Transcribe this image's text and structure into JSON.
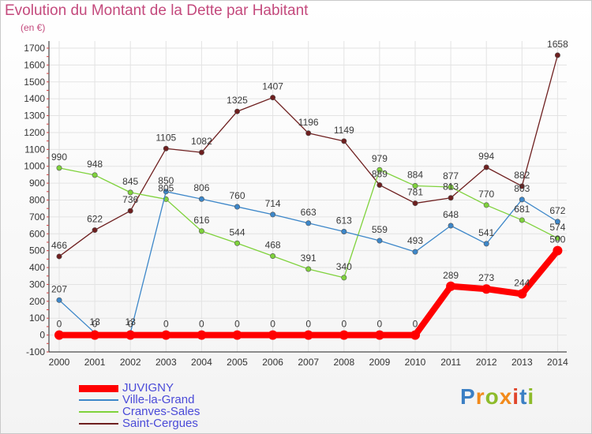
{
  "title": "Evolution du Montant de la Dette par Habitant",
  "unit": "(en €)",
  "logo": "Proxiti",
  "chart_data": {
    "type": "line",
    "x": [
      "2000",
      "2001",
      "2002",
      "2003",
      "2004",
      "2005",
      "2006",
      "2007",
      "2008",
      "2009",
      "2010",
      "2011",
      "2012",
      "2013",
      "2014"
    ],
    "ylim": [
      -100,
      1700
    ],
    "yticks": [
      -100,
      0,
      100,
      200,
      300,
      400,
      500,
      600,
      700,
      800,
      900,
      1000,
      1100,
      1200,
      1300,
      1400,
      1500,
      1600,
      1700
    ],
    "grid": true,
    "legend": "bottom-left",
    "series": [
      {
        "name": "JUVIGNY",
        "color": "#ff0000",
        "values": [
          0,
          0,
          0,
          0,
          0,
          0,
          0,
          0,
          0,
          0,
          0,
          289,
          273,
          244,
          500
        ],
        "labels": [
          "0",
          "0",
          "0",
          "0",
          "0",
          "0",
          "0",
          "0",
          "0",
          "0",
          "0",
          "289",
          "273",
          "244",
          "500"
        ]
      },
      {
        "name": "Ville-la-Grand",
        "color": "#3d87c9",
        "values": [
          207,
          13,
          13,
          850,
          806,
          760,
          714,
          663,
          613,
          559,
          493,
          648,
          541,
          803,
          672
        ],
        "labels": [
          "207",
          "13",
          "13",
          "850",
          "806",
          "760",
          "714",
          "663",
          "613",
          "559",
          "493",
          "648",
          "541",
          "803",
          "672"
        ]
      },
      {
        "name": "Cranves-Sales",
        "color": "#7fd23c",
        "values": [
          990,
          948,
          845,
          805,
          616,
          544,
          468,
          391,
          340,
          979,
          884,
          877,
          770,
          681,
          574
        ],
        "labels": [
          "990",
          "948",
          "845",
          "805",
          "616",
          "544",
          "468",
          "391",
          "340",
          "979",
          "884",
          "877",
          "770",
          "681",
          "574"
        ]
      },
      {
        "name": "Saint-Cergues",
        "color": "#6e1f1f",
        "values": [
          466,
          622,
          736,
          1105,
          1082,
          1325,
          1407,
          1196,
          1149,
          889,
          781,
          813,
          994,
          882,
          1658
        ],
        "labels": [
          "466",
          "622",
          "736",
          "1105",
          "1082",
          "1325",
          "1407",
          "1196",
          "1149",
          "889",
          "781",
          "813",
          "994",
          "882",
          "1658"
        ]
      }
    ]
  }
}
